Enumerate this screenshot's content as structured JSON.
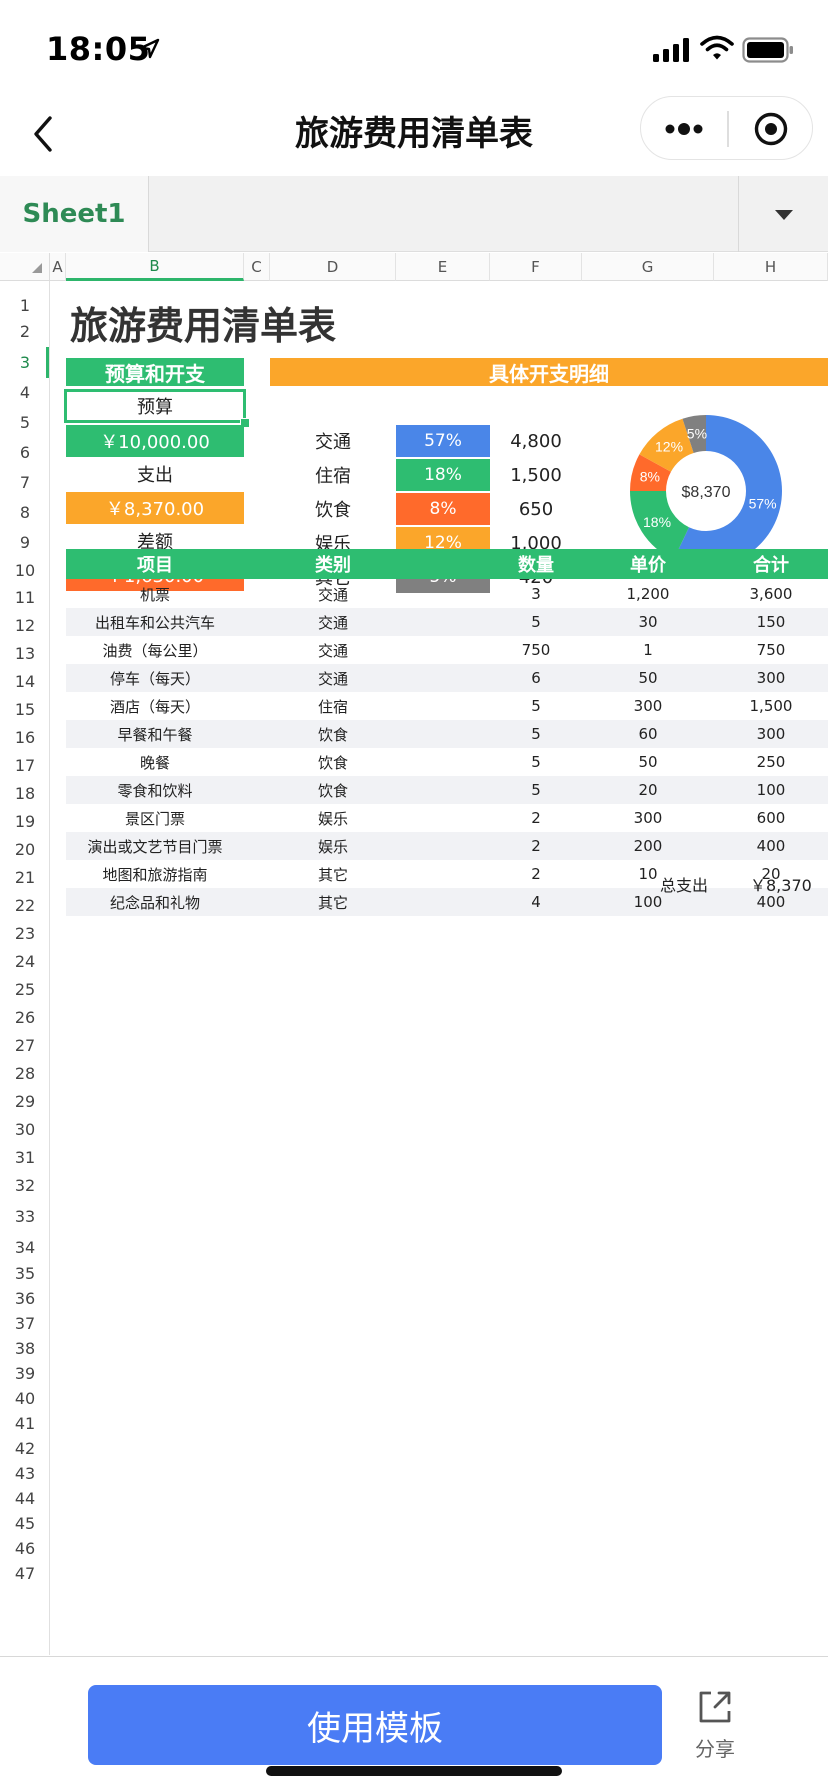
{
  "status_bar": {
    "time": "18:05"
  },
  "nav": {
    "title": "旅游费用清单表"
  },
  "sheet_tabs": {
    "active": "Sheet1"
  },
  "columns": [
    "A",
    "B",
    "C",
    "D",
    "E",
    "F",
    "G",
    "H"
  ],
  "rows": [
    "1",
    "2",
    "3",
    "4",
    "5",
    "6",
    "7",
    "8",
    "9",
    "10",
    "11",
    "12",
    "13",
    "14",
    "15",
    "16",
    "17",
    "18",
    "19",
    "20",
    "21",
    "22",
    "23",
    "24",
    "25",
    "26",
    "27",
    "28",
    "29",
    "30",
    "31",
    "32",
    "33",
    "34",
    "35",
    "36",
    "37",
    "38",
    "39",
    "40",
    "41",
    "42",
    "43",
    "44",
    "45",
    "46",
    "47"
  ],
  "selected": {
    "column": "B",
    "row": "3"
  },
  "sheet": {
    "title": "旅游费用清单表",
    "budget_header": "预算和开支",
    "budget_label": "预算",
    "budget_value": "￥10,000.00",
    "expense_label": "支出",
    "expense_value": "￥8,370.00",
    "diff_label": "差额",
    "diff_value": "￥1,630.00",
    "detail_header": "具体开支明细",
    "breakdown": [
      {
        "category": "交通",
        "percent": "57%",
        "amount": "4,800",
        "color": "#4a86e8"
      },
      {
        "category": "住宿",
        "percent": "18%",
        "amount": "1,500",
        "color": "#2ebd71"
      },
      {
        "category": "饮食",
        "percent": "8%",
        "amount": "650",
        "color": "#ff6a2b"
      },
      {
        "category": "娱乐",
        "percent": "12%",
        "amount": "1,000",
        "color": "#fba62a"
      },
      {
        "category": "其它",
        "percent": "5%",
        "amount": "420",
        "color": "#808080"
      }
    ],
    "donut_center": "$8,370",
    "table": {
      "headers": [
        "项目",
        "类别",
        "数量",
        "单价",
        "合计"
      ],
      "rows": [
        [
          "机票",
          "交通",
          "3",
          "1,200",
          "3,600"
        ],
        [
          "出租车和公共汽车",
          "交通",
          "5",
          "30",
          "150"
        ],
        [
          "油费（每公里）",
          "交通",
          "750",
          "1",
          "750"
        ],
        [
          "停车（每天）",
          "交通",
          "6",
          "50",
          "300"
        ],
        [
          "酒店（每天）",
          "住宿",
          "5",
          "300",
          "1,500"
        ],
        [
          "早餐和午餐",
          "饮食",
          "5",
          "60",
          "300"
        ],
        [
          "晚餐",
          "饮食",
          "5",
          "50",
          "250"
        ],
        [
          "零食和饮料",
          "饮食",
          "5",
          "20",
          "100"
        ],
        [
          "景区门票",
          "娱乐",
          "2",
          "300",
          "600"
        ],
        [
          "演出或文艺节目门票",
          "娱乐",
          "2",
          "200",
          "400"
        ],
        [
          "地图和旅游指南",
          "其它",
          "2",
          "10",
          "20"
        ],
        [
          "纪念品和礼物",
          "其它",
          "4",
          "100",
          "400"
        ]
      ],
      "total_label": "总支出",
      "total_value": "￥8,370"
    }
  },
  "chart_data": {
    "type": "pie",
    "categories": [
      "交通",
      "住宿",
      "饮食",
      "娱乐",
      "其它"
    ],
    "values": [
      57,
      18,
      8,
      12,
      5
    ],
    "labels": [
      "57%",
      "18%",
      "8%",
      "12%",
      "5%"
    ],
    "colors": [
      "#4a86e8",
      "#2ebd71",
      "#ff6a2b",
      "#fba62a",
      "#808080"
    ],
    "center_label": "$8,370"
  },
  "bottom": {
    "use_template": "使用模板",
    "share": "分享"
  },
  "colors": {
    "accent_green": "#2ebd71",
    "accent_orange": "#fba62a",
    "primary_button": "#4a7cf5"
  }
}
